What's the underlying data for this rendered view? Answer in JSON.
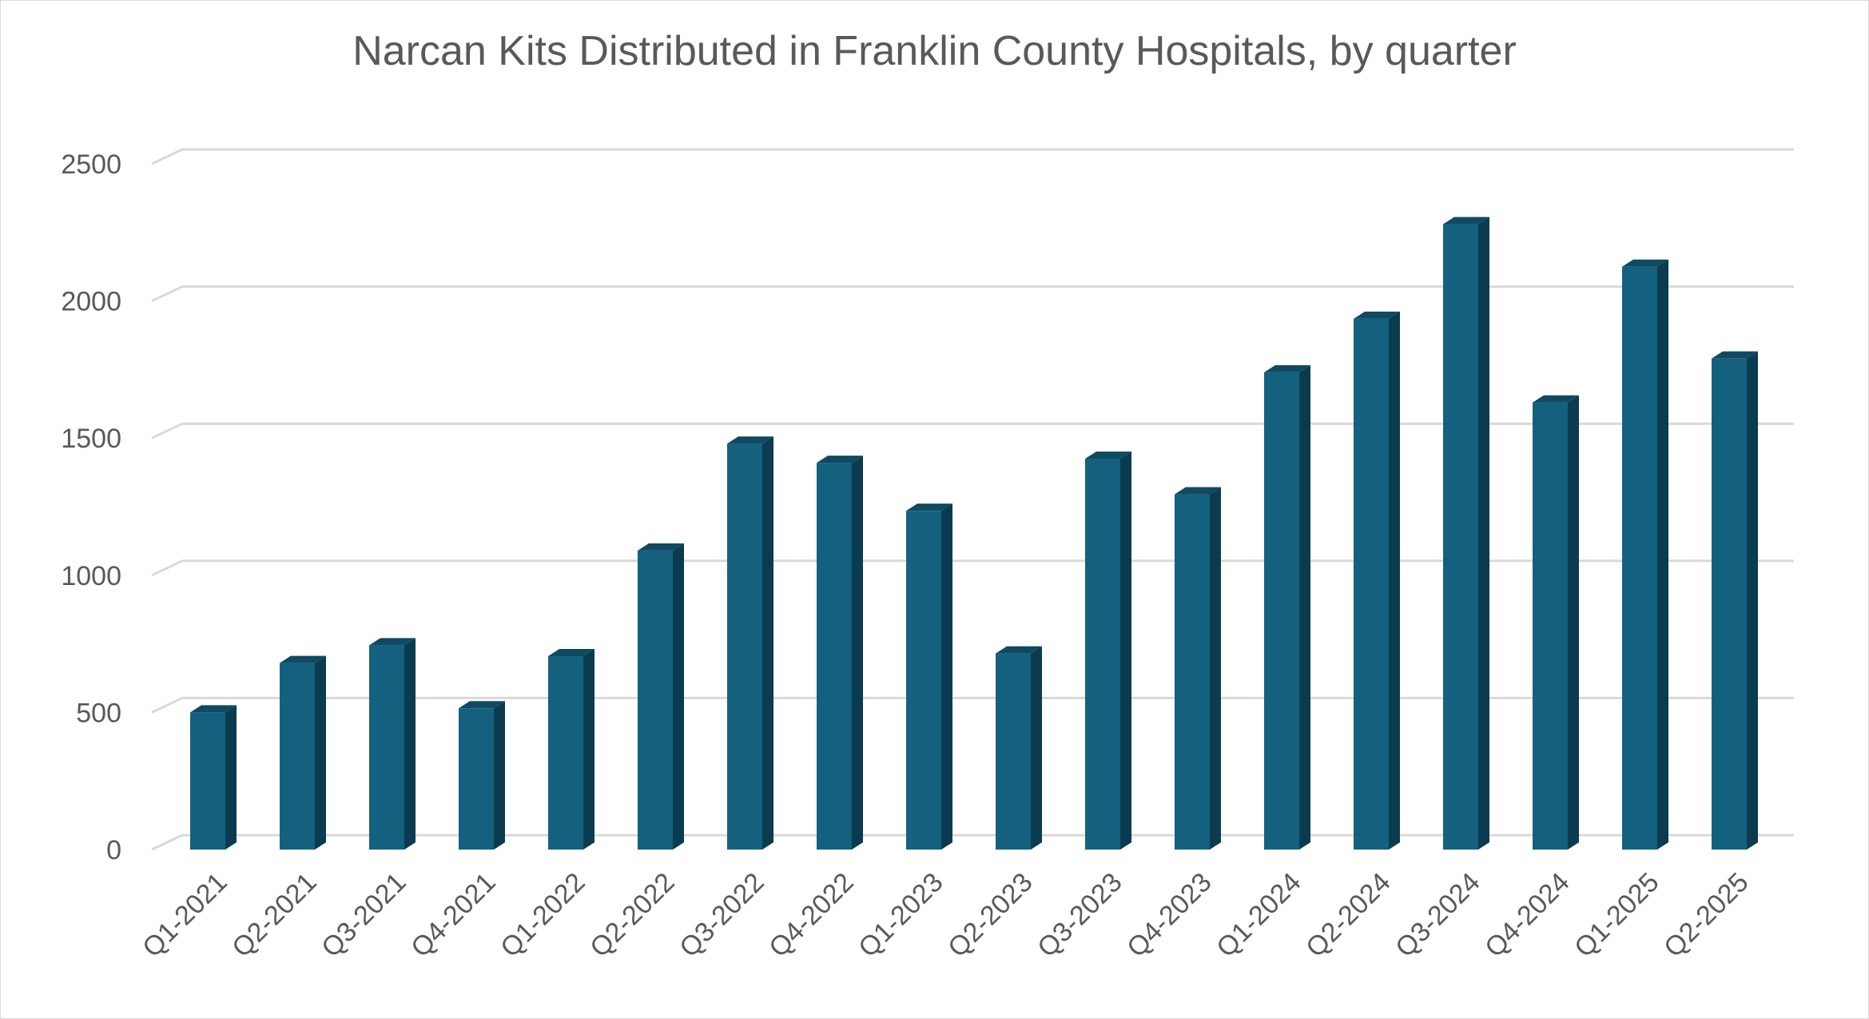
{
  "chart_data": {
    "type": "bar",
    "title": "Narcan Kits Distributed in Franklin County Hospitals, by quarter",
    "xlabel": "",
    "ylabel": "",
    "categories": [
      "Q1-2021",
      "Q2-2021",
      "Q3-2021",
      "Q4-2021",
      "Q1-2022",
      "Q2-2022",
      "Q3-2022",
      "Q4-2022",
      "Q1-2023",
      "Q2-2023",
      "Q3-2023",
      "Q4-2023",
      "Q1-2024",
      "Q2-2024",
      "Q3-2024",
      "Q4-2024",
      "Q1-2025",
      "Q2-2025"
    ],
    "values": [
      500,
      680,
      745,
      515,
      705,
      1090,
      1480,
      1410,
      1235,
      715,
      1425,
      1295,
      1740,
      1935,
      2280,
      1630,
      2125,
      1790
    ],
    "ylim": [
      0,
      2500
    ],
    "yticks": [
      "0",
      "500",
      "1000",
      "1500",
      "2000",
      "2500"
    ],
    "grid": true,
    "legend": "none",
    "colors": {
      "bar_front": "#14607f",
      "bar_side": "#0b3b4f",
      "bar_top": "#0f4a62",
      "grid": "#d9d9d9",
      "text": "#595959"
    }
  }
}
